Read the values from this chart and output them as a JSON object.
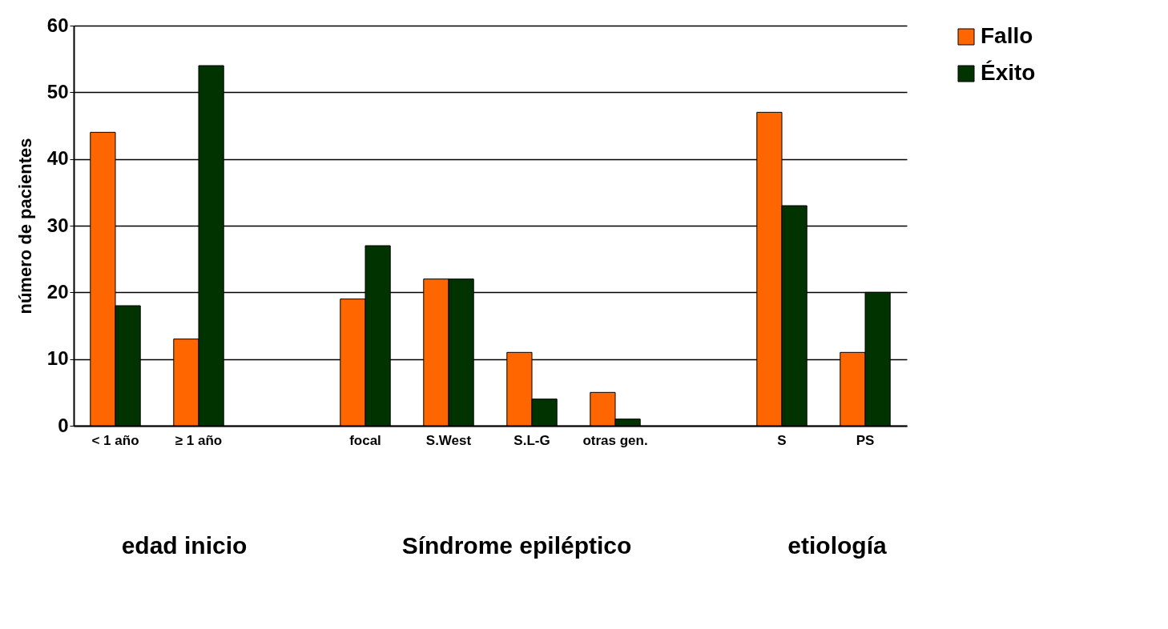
{
  "chart_data": {
    "type": "bar",
    "ylabel": "número de pacientes",
    "categories": [
      "< 1 año",
      "≥ 1 año",
      null,
      "focal",
      "S.West",
      "S.L-G",
      "otras gen.",
      null,
      "S",
      "PS"
    ],
    "series": [
      {
        "name": "Fallo",
        "color": "#ff6600",
        "values": [
          44,
          13,
          null,
          19,
          22,
          11,
          5,
          null,
          47,
          11
        ]
      },
      {
        "name": "Éxito",
        "color": "#003300",
        "values": [
          18,
          54,
          null,
          27,
          22,
          4,
          1,
          null,
          33,
          20
        ]
      }
    ],
    "ylim": [
      0,
      60
    ],
    "yticks": [
      0,
      10,
      20,
      30,
      40,
      50,
      60
    ],
    "grid": "y",
    "legend": "right",
    "annotations": [
      "edad inicio",
      "Síndrome epiléptico",
      "etiología"
    ]
  }
}
